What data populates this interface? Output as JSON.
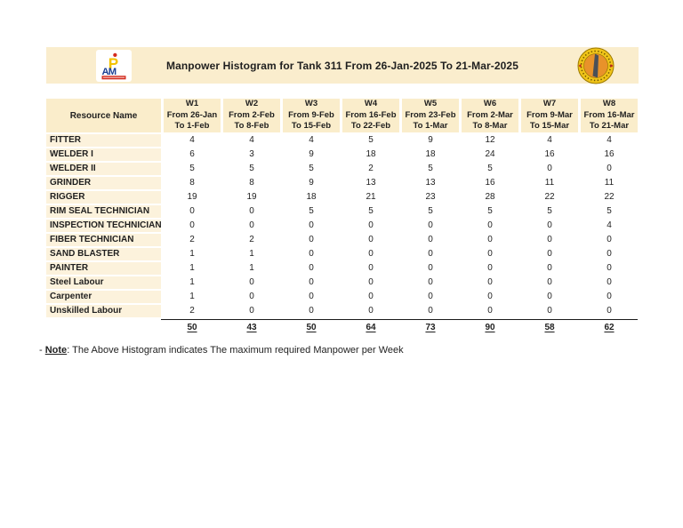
{
  "header": {
    "title": "Manpower Histogram for Tank 311 From 26-Jan-2025 To 21-Mar-2025"
  },
  "table": {
    "resource_header": "Resource Name",
    "weeks": [
      {
        "label": "W1",
        "from": "From 26-Jan",
        "to": "To 1-Feb"
      },
      {
        "label": "W2",
        "from": "From 2-Feb",
        "to": "To 8-Feb"
      },
      {
        "label": "W3",
        "from": "From 9-Feb",
        "to": "To 15-Feb"
      },
      {
        "label": "W4",
        "from": "From 16-Feb",
        "to": "To 22-Feb"
      },
      {
        "label": "W5",
        "from": "From 23-Feb",
        "to": "To 1-Mar"
      },
      {
        "label": "W6",
        "from": "From 2-Mar",
        "to": "To 8-Mar"
      },
      {
        "label": "W7",
        "from": "From 9-Mar",
        "to": "To 15-Mar"
      },
      {
        "label": "W8",
        "from": "From 16-Mar",
        "to": "To 21-Mar"
      }
    ],
    "rows": [
      {
        "name": "FITTER",
        "values": [
          4,
          4,
          4,
          5,
          9,
          12,
          4,
          4
        ]
      },
      {
        "name": "WELDER I",
        "values": [
          6,
          3,
          9,
          18,
          18,
          24,
          16,
          16
        ]
      },
      {
        "name": "WELDER II",
        "values": [
          5,
          5,
          5,
          2,
          5,
          5,
          0,
          0
        ]
      },
      {
        "name": "GRINDER",
        "values": [
          8,
          8,
          9,
          13,
          13,
          16,
          11,
          11
        ]
      },
      {
        "name": "RIGGER",
        "values": [
          19,
          19,
          18,
          21,
          23,
          28,
          22,
          22
        ]
      },
      {
        "name": "RIM SEAL TECHNICIAN",
        "values": [
          0,
          0,
          5,
          5,
          5,
          5,
          5,
          5
        ]
      },
      {
        "name": "INSPECTION TECHNICIAN",
        "values": [
          0,
          0,
          0,
          0,
          0,
          0,
          0,
          4
        ]
      },
      {
        "name": "FIBER TECHNICIAN",
        "values": [
          2,
          2,
          0,
          0,
          0,
          0,
          0,
          0
        ]
      },
      {
        "name": "SAND BLASTER",
        "values": [
          1,
          1,
          0,
          0,
          0,
          0,
          0,
          0
        ]
      },
      {
        "name": "PAINTER",
        "values": [
          1,
          1,
          0,
          0,
          0,
          0,
          0,
          0
        ]
      },
      {
        "name": "Steel Labour",
        "values": [
          1,
          0,
          0,
          0,
          0,
          0,
          0,
          0
        ]
      },
      {
        "name": "Carpenter",
        "values": [
          1,
          0,
          0,
          0,
          0,
          0,
          0,
          0
        ]
      },
      {
        "name": "Unskilled Labour",
        "values": [
          2,
          0,
          0,
          0,
          0,
          0,
          0,
          0
        ]
      }
    ],
    "totals": [
      50,
      43,
      50,
      64,
      73,
      90,
      58,
      62
    ]
  },
  "note": {
    "prefix": "- ",
    "label": "Note",
    "text": ": The Above Histogram indicates The maximum required Manpower per Week"
  },
  "icons": {
    "left_logo": "petroserv-company-logo",
    "right_logo": "company-round-seal"
  },
  "colors": {
    "band-bg": "#faedcd",
    "header-bg": "#faedcb",
    "name-bg": "#fcf2dc",
    "ink": "#1f1f1f",
    "line": "#1a1a1a"
  }
}
